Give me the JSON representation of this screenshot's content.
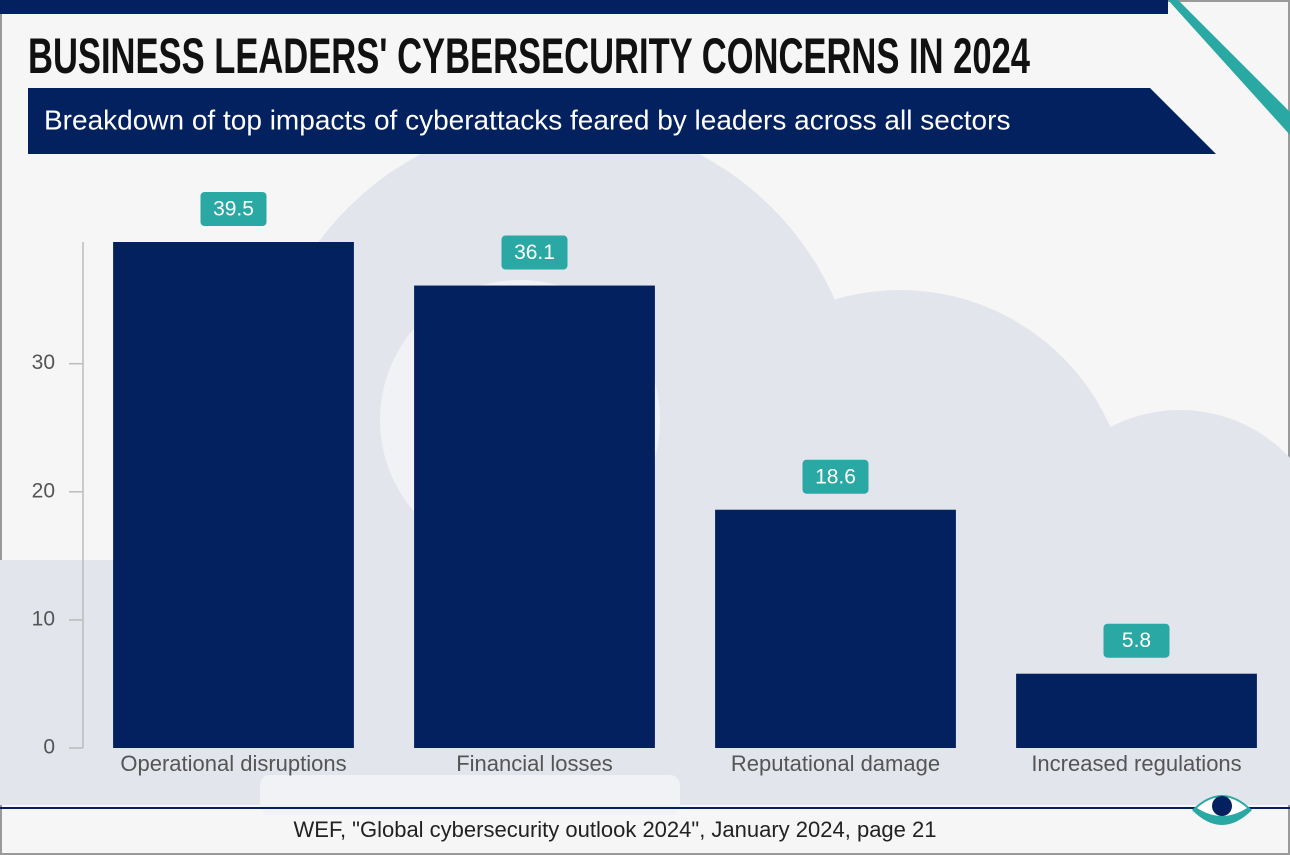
{
  "chart_data": {
    "type": "bar",
    "title": "BUSINESS LEADERS' CYBERSECURITY CONCERNS IN 2024",
    "subtitle": "Breakdown of top impacts of cyberattacks feared by leaders across all sectors",
    "source": "WEF, \"Global cybersecurity outlook 2024\", January 2024, page 21",
    "categories": [
      "Operational disruptions",
      "Financial losses",
      "Reputational damage",
      "Increased regulations"
    ],
    "values": [
      39.5,
      36.1,
      18.6,
      5.8
    ],
    "color": "#03215e",
    "label_color": "#2aa8a4",
    "ylim": [
      0,
      39.5
    ],
    "yticks": [
      0,
      10,
      20,
      30
    ]
  }
}
